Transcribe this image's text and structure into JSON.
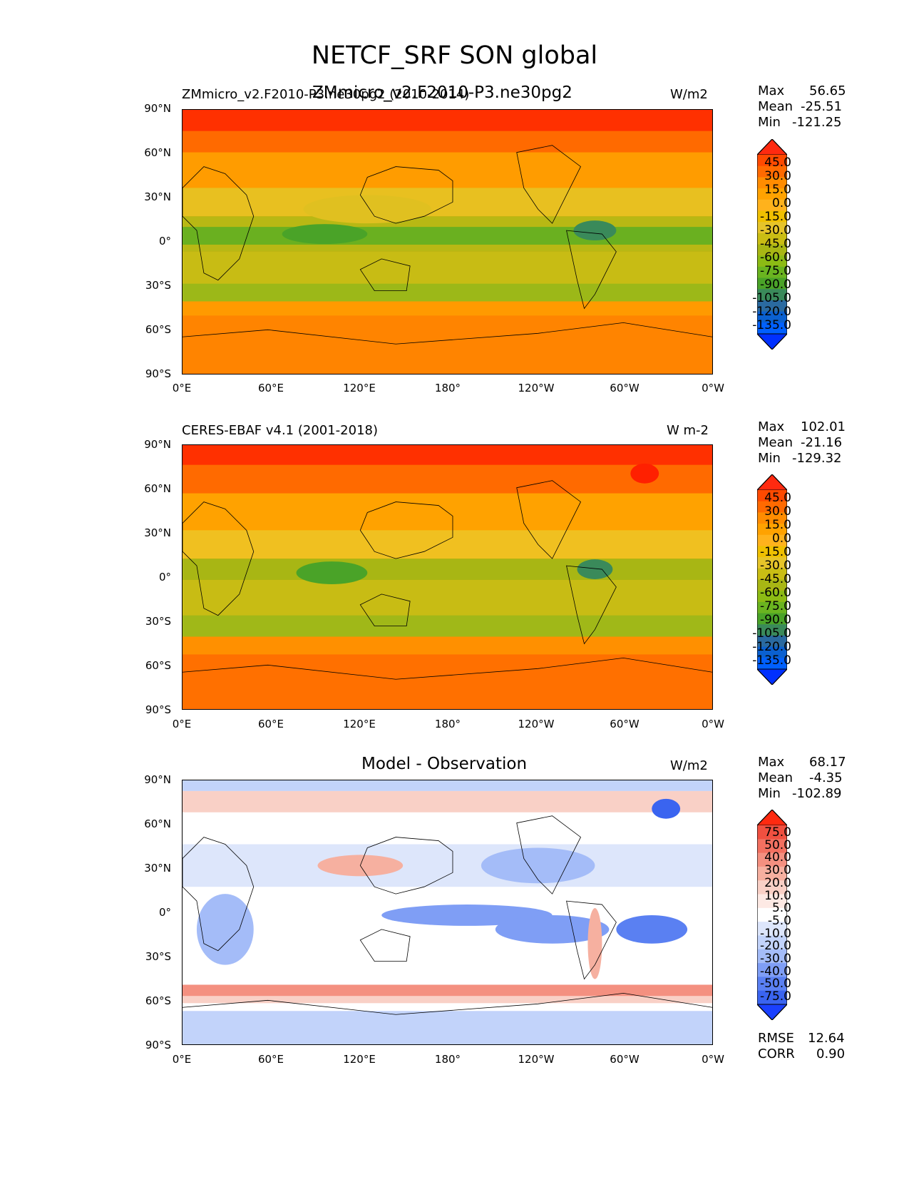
{
  "figure": {
    "title": "NETCF_SRF SON global"
  },
  "panels": [
    {
      "id": "test",
      "left_title": "ZMmicro_v2.F2010-P3.ne30pg2 (2010-2014)",
      "center_title": "ZMmicro_v2.F2010-P3.ne30pg2",
      "units": "W/m2",
      "stats": {
        "max_key": "Max",
        "max": "56.65",
        "mean_key": "Mean",
        "mean": "-25.51",
        "min_key": "Min",
        "min": "-121.25"
      },
      "colorbar_levels": [
        "45.0",
        "30.0",
        "15.0",
        "0.0",
        "-15.0",
        "-30.0",
        "-45.0",
        "-60.0",
        "-75.0",
        "-90.0",
        "-105.0",
        "-120.0",
        "-135.0"
      ],
      "colorbar_colors": [
        "#ff2a10",
        "#ff4a00",
        "#ff6a00",
        "#ff8c00",
        "#ffa200",
        "#ffb21c",
        "#f0c000",
        "#e6c42a",
        "#cabd14",
        "#a8b614",
        "#8cbb14",
        "#6ab420",
        "#4aa328",
        "#3a8a5a",
        "#2a6aa0",
        "#0a60d0",
        "#0060ff",
        "#0030ff"
      ]
    },
    {
      "id": "ref",
      "left_title": "CERES-EBAF v4.1 (2001-2018)",
      "center_title": "",
      "units": "W m-2",
      "stats": {
        "max_key": "Max",
        "max": "102.01",
        "mean_key": "Mean",
        "mean": "-21.16",
        "min_key": "Min",
        "min": "-129.32"
      },
      "colorbar_levels": [
        "45.0",
        "30.0",
        "15.0",
        "0.0",
        "-15.0",
        "-30.0",
        "-45.0",
        "-60.0",
        "-75.0",
        "-90.0",
        "-105.0",
        "-120.0",
        "-135.0"
      ],
      "colorbar_colors": [
        "#ff2a10",
        "#ff4a00",
        "#ff6a00",
        "#ff8c00",
        "#ffa200",
        "#ffb21c",
        "#f0c000",
        "#e6c42a",
        "#cabd14",
        "#a8b614",
        "#8cbb14",
        "#6ab420",
        "#4aa328",
        "#3a8a5a",
        "#2a6aa0",
        "#0a60d0",
        "#0060ff",
        "#0030ff"
      ]
    },
    {
      "id": "diff",
      "left_title": "",
      "center_title": "Model - Observation",
      "units": "W/m2",
      "stats": {
        "max_key": "Max",
        "max": "68.17",
        "mean_key": "Mean",
        "mean": "-4.35",
        "min_key": "Min",
        "min": "-102.89"
      },
      "colorbar_levels": [
        "75.0",
        "50.0",
        "40.0",
        "30.0",
        "20.0",
        "10.0",
        "5.0",
        "-5.0",
        "-10.0",
        "-20.0",
        "-30.0",
        "-40.0",
        "-50.0",
        "-75.0"
      ],
      "colorbar_colors": [
        "#ff2a10",
        "#f05040",
        "#f27060",
        "#f49080",
        "#f6b0a0",
        "#f9d0c6",
        "#fde9e4",
        "#ffffff",
        "#dde6fb",
        "#c2d3fa",
        "#a4bcf8",
        "#7f9ef5",
        "#5a80f2",
        "#3a64f0",
        "#1a40ff"
      ],
      "rmse_key": "RMSE",
      "rmse": "12.64",
      "corr_key": "CORR",
      "corr": "0.90"
    }
  ],
  "axes": {
    "lat_ticks": [
      "90°N",
      "60°N",
      "30°N",
      "0°",
      "30°S",
      "60°S",
      "90°S"
    ],
    "lon_ticks": [
      "0°E",
      "60°E",
      "120°E",
      "180°",
      "120°W",
      "60°W",
      "0°W"
    ]
  },
  "colors": {
    "field_hi": "#ff3000",
    "field_mid": "#ffa000",
    "field_low": "#c8c020",
    "field_trop": "#5aa524",
    "diff_pos": "#f08070",
    "diff_neg": "#7a9af0"
  }
}
